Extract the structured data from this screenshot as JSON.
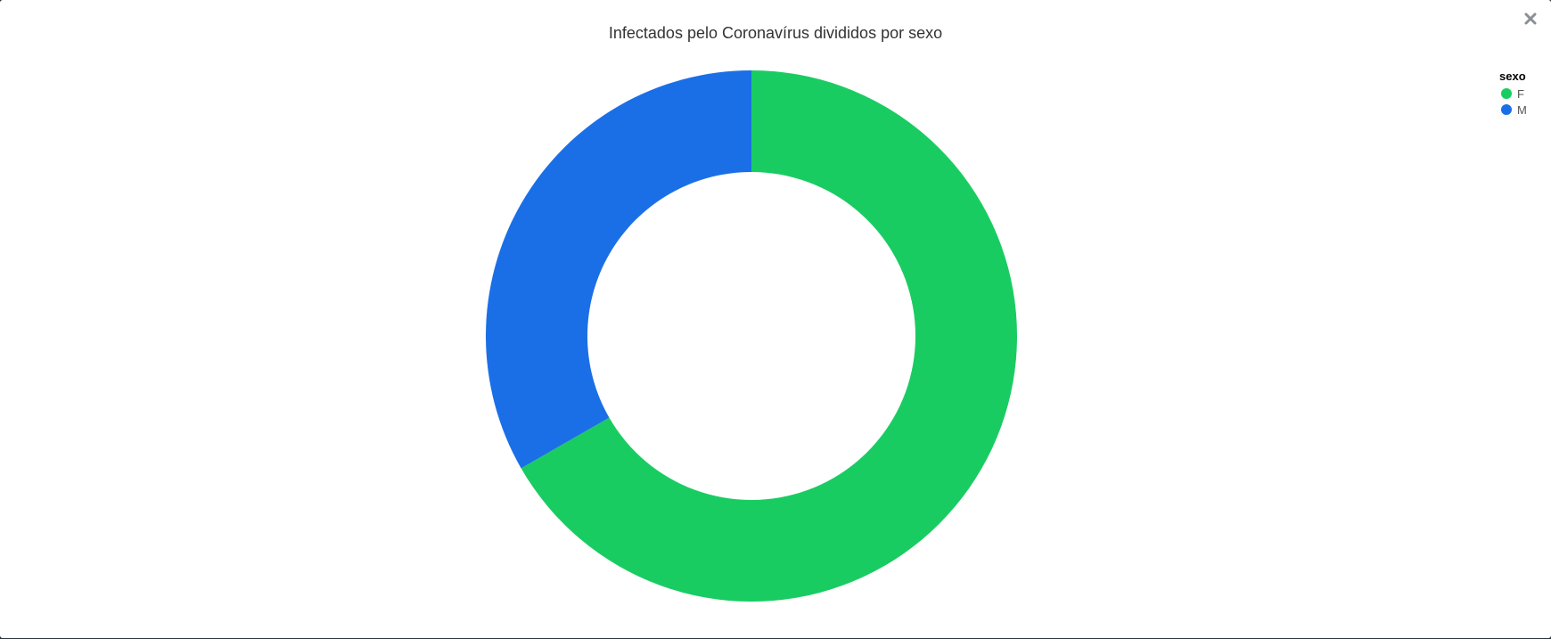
{
  "window": {
    "close_label": "×"
  },
  "chart_data": {
    "type": "pie",
    "title": "Infectados pelo Coronavírus divididos por sexo",
    "legend_title": "sexo",
    "legend_position": "top-right",
    "donut": true,
    "categories": [
      "F",
      "M"
    ],
    "values": [
      66.7,
      33.3
    ],
    "colors": [
      "#19cc62",
      "#1b6fe6"
    ]
  }
}
